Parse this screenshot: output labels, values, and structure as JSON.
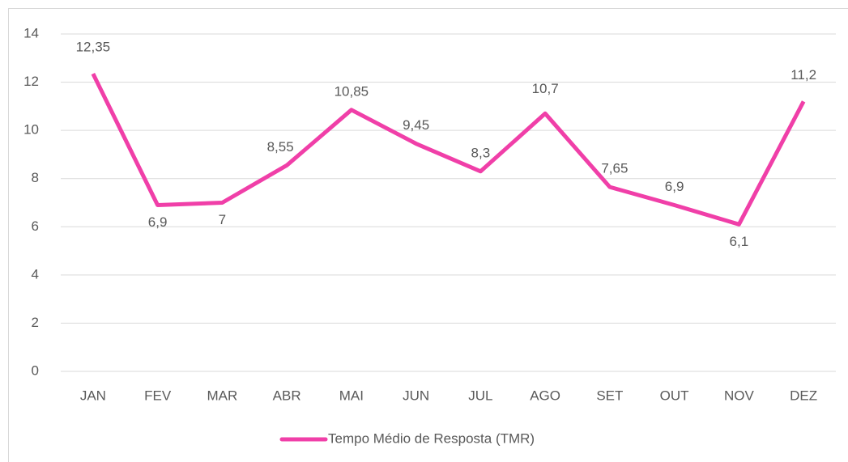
{
  "chart_data": {
    "type": "line",
    "categories": [
      "JAN",
      "FEV",
      "MAR",
      "ABR",
      "MAI",
      "JUN",
      "JUL",
      "AGO",
      "SET",
      "OUT",
      "NOV",
      "DEZ"
    ],
    "series": [
      {
        "name": "Tempo Médio de Resposta (TMR)",
        "color": "#f03fa8",
        "values": [
          12.35,
          6.9,
          7,
          8.55,
          10.85,
          9.45,
          8.3,
          10.7,
          7.65,
          6.9,
          6.1,
          11.2
        ],
        "value_labels": [
          "12,35",
          "6,9",
          "7",
          "8,55",
          "10,85",
          "9,45",
          "8,3",
          "10,7",
          "7,65",
          "6,9",
          "6,1",
          "11,2"
        ]
      }
    ],
    "ylim": [
      0,
      14
    ],
    "yticks": [
      0,
      2,
      4,
      6,
      8,
      10,
      12,
      14
    ],
    "grid": true,
    "legend": "bottom"
  }
}
